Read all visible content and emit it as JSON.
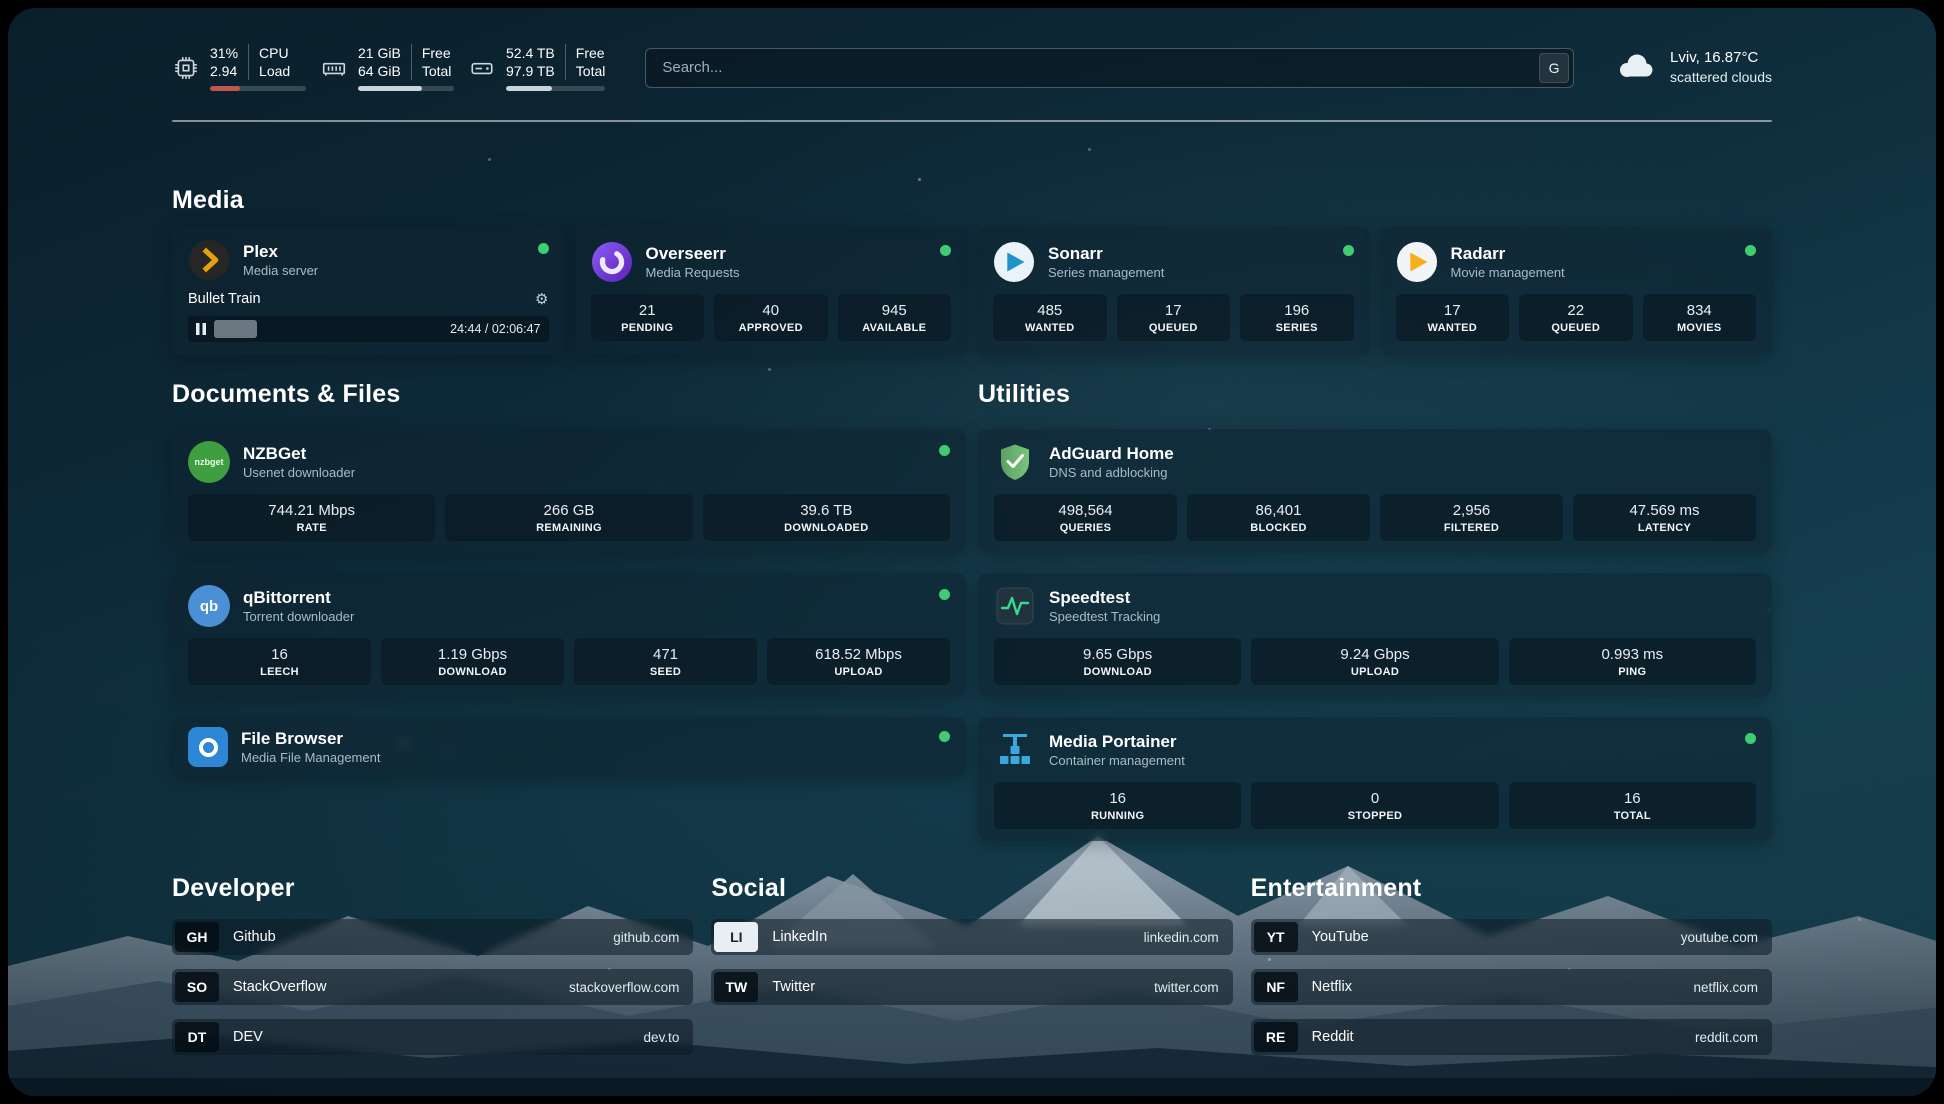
{
  "topbar": {
    "cpu": {
      "value_top": "31%",
      "value_bottom": "2.94",
      "label_top": "CPU",
      "label_bottom": "Load",
      "bar_percent": 31
    },
    "ram": {
      "value_top": "21 GiB",
      "value_bottom": "64 GiB",
      "label_top": "Free",
      "label_bottom": "Total",
      "bar_percent": 67
    },
    "disk": {
      "value_top": "52.4 TB",
      "value_bottom": "97.9 TB",
      "label_top": "Free",
      "label_bottom": "Total",
      "bar_percent": 46
    },
    "search": {
      "placeholder": "Search...",
      "engine_button": "G"
    },
    "weather": {
      "location": "Lviv, 16.87°C",
      "condition": "scattered clouds"
    }
  },
  "media": {
    "title": "Media",
    "plex": {
      "name": "Plex",
      "subtitle": "Media server",
      "now_playing": "Bullet Train",
      "gear_icon": "⚙",
      "time_display": "24:44 / 02:06:47",
      "progress_percent": 19
    },
    "overseerr": {
      "name": "Overseerr",
      "subtitle": "Media Requests",
      "stats": [
        {
          "value": "21",
          "label": "PENDING"
        },
        {
          "value": "40",
          "label": "APPROVED"
        },
        {
          "value": "945",
          "label": "AVAILABLE"
        }
      ]
    },
    "sonarr": {
      "name": "Sonarr",
      "subtitle": "Series management",
      "stats": [
        {
          "value": "485",
          "label": "WANTED"
        },
        {
          "value": "17",
          "label": "QUEUED"
        },
        {
          "value": "196",
          "label": "SERIES"
        }
      ]
    },
    "radarr": {
      "name": "Radarr",
      "subtitle": "Movie management",
      "stats": [
        {
          "value": "17",
          "label": "WANTED"
        },
        {
          "value": "22",
          "label": "QUEUED"
        },
        {
          "value": "834",
          "label": "MOVIES"
        }
      ]
    }
  },
  "documents": {
    "title": "Documents & Files",
    "nzbget": {
      "name": "NZBGet",
      "subtitle": "Usenet downloader",
      "icon_text": "nzbget",
      "stats": [
        {
          "value": "744.21 Mbps",
          "label": "RATE"
        },
        {
          "value": "266 GB",
          "label": "REMAINING"
        },
        {
          "value": "39.6 TB",
          "label": "DOWNLOADED"
        }
      ]
    },
    "qbittorrent": {
      "name": "qBittorrent",
      "subtitle": "Torrent downloader",
      "icon_text": "qb",
      "stats": [
        {
          "value": "16",
          "label": "LEECH"
        },
        {
          "value": "1.19 Gbps",
          "label": "DOWNLOAD"
        },
        {
          "value": "471",
          "label": "SEED"
        },
        {
          "value": "618.52 Mbps",
          "label": "UPLOAD"
        }
      ]
    },
    "filebrowser": {
      "name": "File Browser",
      "subtitle": "Media File Management"
    }
  },
  "utilities": {
    "title": "Utilities",
    "adguard": {
      "name": "AdGuard Home",
      "subtitle": "DNS and adblocking",
      "stats": [
        {
          "value": "498,564",
          "label": "QUERIES"
        },
        {
          "value": "86,401",
          "label": "BLOCKED"
        },
        {
          "value": "2,956",
          "label": "FILTERED"
        },
        {
          "value": "47.569 ms",
          "label": "LATENCY"
        }
      ]
    },
    "speedtest": {
      "name": "Speedtest",
      "subtitle": "Speedtest Tracking",
      "stats": [
        {
          "value": "9.65 Gbps",
          "label": "DOWNLOAD"
        },
        {
          "value": "9.24 Gbps",
          "label": "UPLOAD"
        },
        {
          "value": "0.993 ms",
          "label": "PING"
        }
      ]
    },
    "portainer": {
      "name": "Media Portainer",
      "subtitle": "Container management",
      "stats": [
        {
          "value": "16",
          "label": "RUNNING"
        },
        {
          "value": "0",
          "label": "STOPPED"
        },
        {
          "value": "16",
          "label": "TOTAL"
        }
      ]
    }
  },
  "bookmarks": {
    "developer": {
      "title": "Developer",
      "items": [
        {
          "abbr": "GH",
          "name": "Github",
          "url": "github.com"
        },
        {
          "abbr": "SO",
          "name": "StackOverflow",
          "url": "stackoverflow.com"
        },
        {
          "abbr": "DT",
          "name": "DEV",
          "url": "dev.to"
        }
      ]
    },
    "social": {
      "title": "Social",
      "items": [
        {
          "abbr": "LI",
          "name": "LinkedIn",
          "url": "linkedin.com"
        },
        {
          "abbr": "TW",
          "name": "Twitter",
          "url": "twitter.com"
        }
      ]
    },
    "entertainment": {
      "title": "Entertainment",
      "items": [
        {
          "abbr": "YT",
          "name": "YouTube",
          "url": "youtube.com"
        },
        {
          "abbr": "NF",
          "name": "Netflix",
          "url": "netflix.com"
        },
        {
          "abbr": "RE",
          "name": "Reddit",
          "url": "reddit.com"
        }
      ]
    }
  },
  "colors": {
    "status_online": "#3ece71",
    "cpu_bar": "#c0564a",
    "ram_bar": "#c9d3da",
    "disk_bar": "#c9d3da"
  }
}
